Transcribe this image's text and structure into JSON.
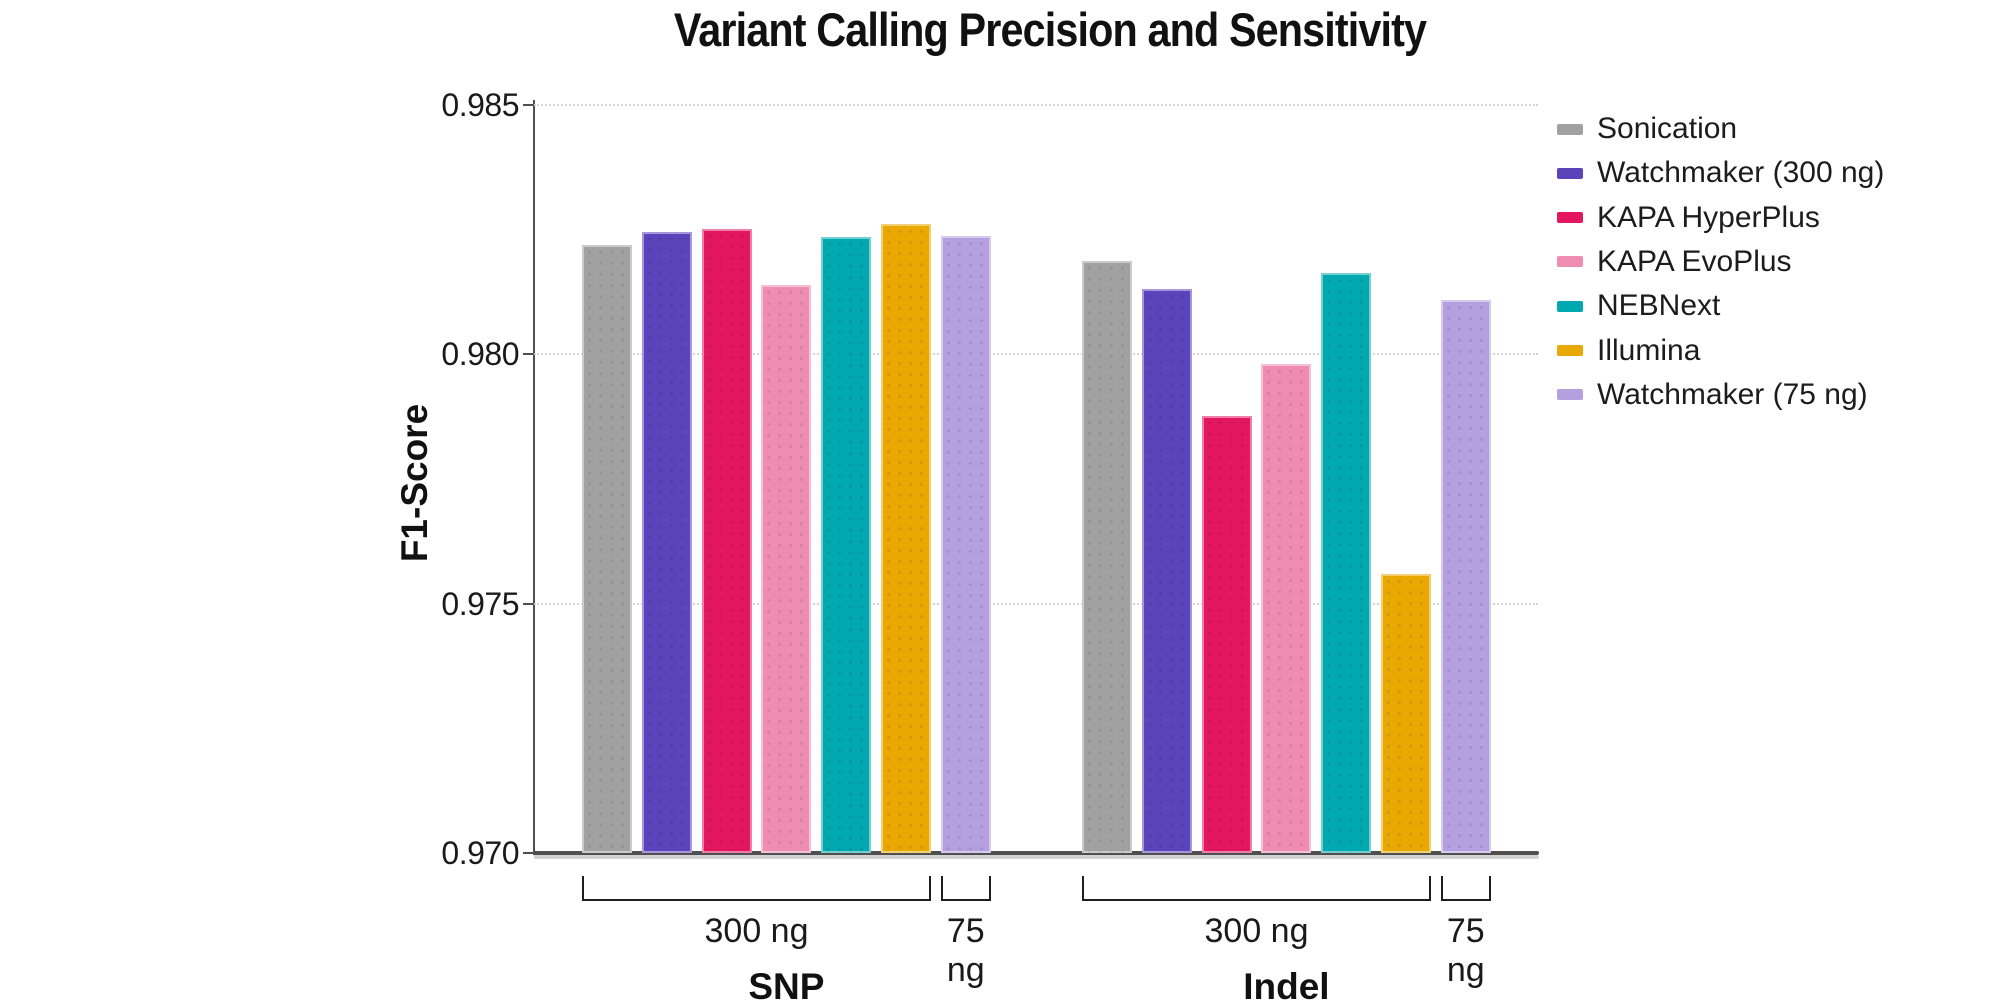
{
  "title": "Variant Calling Precision and Sensitivity",
  "chart_data": {
    "type": "bar",
    "title": "Variant Calling Precision and Sensitivity",
    "ylabel": "F1-Score",
    "ylim": [
      0.97,
      0.985
    ],
    "yticks": [
      0.97,
      0.975,
      0.98,
      0.985
    ],
    "ytick_labels": [
      "0.970",
      "0.975",
      "0.980",
      "0.985"
    ],
    "grid": true,
    "legend_position": "right",
    "categories": [
      "SNP",
      "Indel"
    ],
    "subgroup_brackets": [
      {
        "label": "300 ng",
        "from": 0,
        "to": 5
      },
      {
        "label": "75 ng",
        "from": 6,
        "to": 6
      }
    ],
    "series": [
      {
        "name": "Sonication",
        "color": "#a1a1a1",
        "values": {
          "SNP": 0.9822,
          "Indel": 0.98188
        }
      },
      {
        "name": "Watchmaker (300 ng)",
        "color": "#5b43ba",
        "values": {
          "SNP": 0.98245,
          "Indel": 0.98132
        }
      },
      {
        "name": "KAPA HyperPlus",
        "color": "#e2175e",
        "values": {
          "SNP": 0.98252,
          "Indel": 0.97876
        }
      },
      {
        "name": "KAPA EvoPlus",
        "color": "#ef8db1",
        "values": {
          "SNP": 0.9814,
          "Indel": 0.9798
        }
      },
      {
        "name": "NEBNext",
        "color": "#00a8b0",
        "values": {
          "SNP": 0.98236,
          "Indel": 0.98164
        }
      },
      {
        "name": "Illumina",
        "color": "#eaa802",
        "values": {
          "SNP": 0.98261,
          "Indel": 0.97559
        }
      },
      {
        "name": "Watchmaker (75 ng)",
        "color": "#b49fdf",
        "values": {
          "SNP": 0.98237,
          "Indel": 0.98108
        }
      }
    ]
  }
}
